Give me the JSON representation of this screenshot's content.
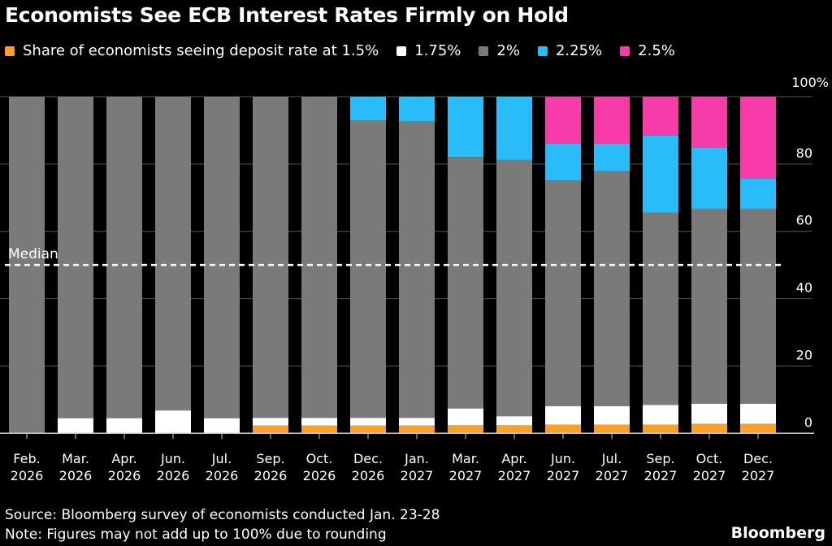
{
  "title": "Economists See ECB Interest Rates Firmly on Hold",
  "source": "Source: Bloomberg survey of economists conducted Jan. 23-28",
  "note": "Note: Figures may not add up to 100% due to rounding",
  "brand": "Bloomberg",
  "chart_data": {
    "type": "bar",
    "stacked": true,
    "title": "Economists See ECB Interest Rates Firmly on Hold",
    "ylim": [
      0,
      100
    ],
    "yticks": [
      "0",
      "20",
      "40",
      "60",
      "80",
      "100%"
    ],
    "ytick_values": [
      0,
      20,
      40,
      60,
      80,
      100
    ],
    "grid": true,
    "legend_placement": "top",
    "categories": [
      [
        "Feb.",
        "2026"
      ],
      [
        "Mar.",
        "2026"
      ],
      [
        "Apr.",
        "2026"
      ],
      [
        "Jun.",
        "2026"
      ],
      [
        "Jul.",
        "2026"
      ],
      [
        "Sep.",
        "2026"
      ],
      [
        "Oct.",
        "2026"
      ],
      [
        "Dec.",
        "2026"
      ],
      [
        "Jan.",
        "2027"
      ],
      [
        "Mar.",
        "2027"
      ],
      [
        "Apr.",
        "2027"
      ],
      [
        "Jun.",
        "2027"
      ],
      [
        "Jul.",
        "2027"
      ],
      [
        "Sep.",
        "2027"
      ],
      [
        "Oct.",
        "2027"
      ],
      [
        "Dec.",
        "2027"
      ]
    ],
    "series": [
      {
        "name": "Share of economists seeing deposit rate at 1.5%",
        "color": "#f7a128",
        "values": [
          0,
          0,
          0,
          0,
          0,
          2.3,
          2.3,
          2.3,
          2.3,
          2.4,
          2.4,
          2.6,
          2.6,
          2.6,
          2.8,
          2.8
        ]
      },
      {
        "name": "1.75%",
        "color": "#ffffff",
        "values": [
          0,
          4.5,
          4.5,
          6.8,
          4.5,
          2.3,
          2.3,
          2.3,
          2.3,
          5.0,
          2.7,
          5.5,
          5.5,
          5.8,
          6.0,
          6.0
        ]
      },
      {
        "name": "2%",
        "color": "#7a7a7a",
        "values": [
          100,
          95.5,
          95.5,
          93.2,
          95.5,
          95.4,
          95.4,
          88.4,
          88.0,
          74.7,
          76.1,
          67.0,
          69.8,
          57.2,
          57.9,
          57.9
        ]
      },
      {
        "name": "2.25%",
        "color": "#29bcf8",
        "values": [
          0,
          0,
          0,
          0,
          0,
          0,
          0,
          7.0,
          7.4,
          17.9,
          18.8,
          11.0,
          8.1,
          23.0,
          18.2,
          9.1
        ]
      },
      {
        "name": "2.5%",
        "color": "#f73ba8",
        "values": [
          0,
          0,
          0,
          0,
          0,
          0,
          0,
          0,
          0,
          0,
          0,
          13.9,
          14.0,
          11.4,
          15.1,
          24.2
        ]
      }
    ],
    "annotations": [
      {
        "label": "Median",
        "y": 50,
        "style": "dashed"
      }
    ]
  }
}
